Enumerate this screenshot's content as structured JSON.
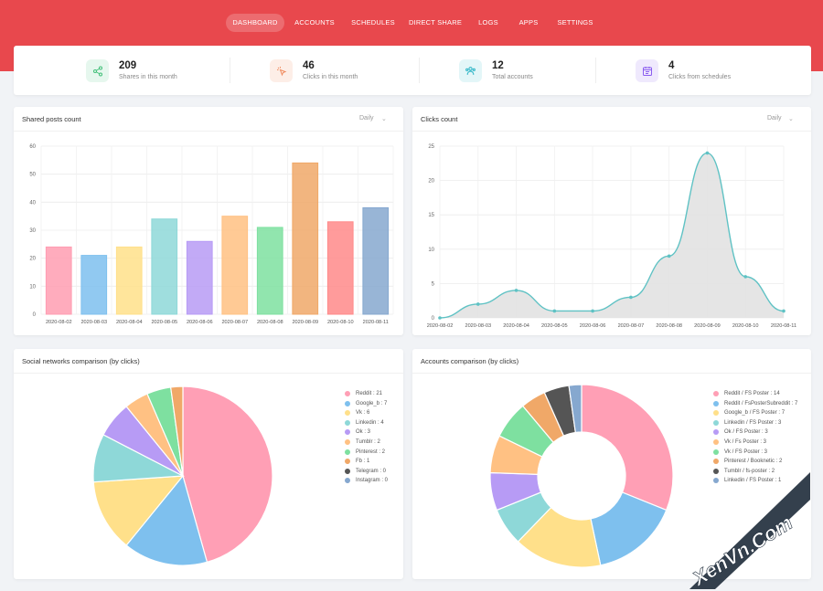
{
  "nav": [
    {
      "label": "DASHBOARD",
      "active": true
    },
    {
      "label": "ACCOUNTS"
    },
    {
      "label": "SCHEDULES"
    },
    {
      "label": "DIRECT SHARE"
    },
    {
      "label": "LOGS"
    },
    {
      "label": "APPS"
    },
    {
      "label": "SETTINGS"
    }
  ],
  "stats": [
    {
      "value": "209",
      "label": "Shares in this month",
      "icon": "share-icon",
      "color": "#43c07a",
      "bg": "#e6f7ee"
    },
    {
      "value": "46",
      "label": "Clicks in this month",
      "icon": "cursor-click-icon",
      "color": "#f08a5d",
      "bg": "#fdeee7"
    },
    {
      "value": "12",
      "label": "Total accounts",
      "icon": "users-icon",
      "color": "#35b8c9",
      "bg": "#e3f6f8"
    },
    {
      "value": "4",
      "label": "Clicks from schedules",
      "icon": "calendar-icon",
      "color": "#8a5cf0",
      "bg": "#efe9fd"
    }
  ],
  "cards": {
    "shared": {
      "title": "Shared posts count",
      "period": "Daily"
    },
    "clicks": {
      "title": "Clicks count",
      "period": "Daily"
    },
    "social": {
      "title": "Social networks comparison (by clicks)"
    },
    "accounts": {
      "title": "Accounts comparison (by clicks)"
    }
  },
  "chart_data": [
    {
      "type": "bar",
      "title": "Shared posts count",
      "categories": [
        "2020-08-02",
        "2020-08-03",
        "2020-08-04",
        "2020-08-05",
        "2020-08-06",
        "2020-08-07",
        "2020-08-08",
        "2020-08-09",
        "2020-08-10",
        "2020-08-11"
      ],
      "values": [
        24,
        21,
        24,
        34,
        26,
        35,
        31,
        54,
        33,
        38
      ],
      "colors": [
        "#ff9db2",
        "#7ec0ee",
        "#ffe08a",
        "#8ed8d8",
        "#b79bf5",
        "#ffc183",
        "#7ee0a0",
        "#f0a868",
        "#ff8a8a",
        "#86a8cf"
      ],
      "ylim": [
        0,
        60
      ],
      "yticks": [
        0,
        10,
        20,
        30,
        40,
        50,
        60
      ],
      "grid": true
    },
    {
      "type": "area",
      "title": "Clicks count",
      "categories": [
        "2020-08-02",
        "2020-08-03",
        "2020-08-04",
        "2020-08-05",
        "2020-08-06",
        "2020-08-07",
        "2020-08-08",
        "2020-08-09",
        "2020-08-10",
        "2020-08-11"
      ],
      "values": [
        0,
        2,
        4,
        1,
        1,
        3,
        9,
        24,
        6,
        1
      ],
      "line_color": "#5fc2c4",
      "fill_color": "#e2e2e2",
      "ylim": [
        0,
        25
      ],
      "yticks": [
        0,
        5,
        10,
        15,
        20,
        25
      ],
      "grid": true
    },
    {
      "type": "pie",
      "title": "Social networks comparison (by clicks)",
      "slices": [
        {
          "label": "Reddit : 21",
          "value": 21,
          "color": "#ff9fb5"
        },
        {
          "label": "Google_b : 7",
          "value": 7,
          "color": "#7ec0ee"
        },
        {
          "label": "Vk : 6",
          "value": 6,
          "color": "#ffe08a"
        },
        {
          "label": "Linkedin : 4",
          "value": 4,
          "color": "#8ed8d8"
        },
        {
          "label": "Ok : 3",
          "value": 3,
          "color": "#b79bf5"
        },
        {
          "label": "Tumblr : 2",
          "value": 2,
          "color": "#ffc183"
        },
        {
          "label": "Pinterest : 2",
          "value": 2,
          "color": "#7ee0a0"
        },
        {
          "label": "Fb : 1",
          "value": 1,
          "color": "#f0a868"
        },
        {
          "label": "Telegram : 0",
          "value": 0,
          "color": "#555555"
        },
        {
          "label": "Instagram : 0",
          "value": 0,
          "color": "#86a8cf"
        }
      ],
      "legend": "right"
    },
    {
      "type": "pie",
      "donut": true,
      "title": "Accounts comparison (by clicks)",
      "slices": [
        {
          "label": "Reddit / FS Poster : 14",
          "value": 14,
          "color": "#ff9fb5"
        },
        {
          "label": "Reddit / FsPosterSubreddit : 7",
          "value": 7,
          "color": "#7ec0ee"
        },
        {
          "label": "Google_b / FS Poster : 7",
          "value": 7,
          "color": "#ffe08a"
        },
        {
          "label": "Linkedin / FS Poster : 3",
          "value": 3,
          "color": "#8ed8d8"
        },
        {
          "label": "Ok / FS Poster : 3",
          "value": 3,
          "color": "#b79bf5"
        },
        {
          "label": "Vk / Fs Poster : 3",
          "value": 3,
          "color": "#ffc183"
        },
        {
          "label": "Vk / FS Poster : 3",
          "value": 3,
          "color": "#7ee0a0"
        },
        {
          "label": "Pinterest / Booknetic : 2",
          "value": 2,
          "color": "#f0a868"
        },
        {
          "label": "Tumblr / fs-poster : 2",
          "value": 2,
          "color": "#555555"
        },
        {
          "label": "Linkedin / FS Poster : 1",
          "value": 1,
          "color": "#86a8cf"
        }
      ],
      "legend": "right"
    }
  ],
  "watermark": "XenVn.Com"
}
